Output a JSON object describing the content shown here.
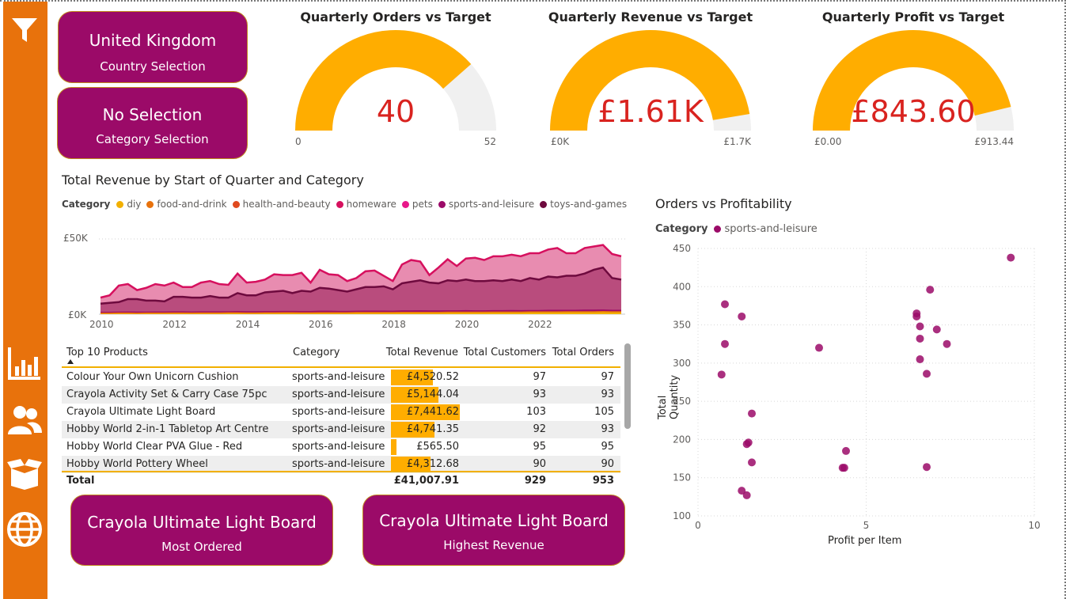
{
  "sidebar": {
    "icons": [
      "filter-icon",
      "bar-chart-icon",
      "users-icon",
      "box-icon",
      "globe-icon"
    ]
  },
  "selections": {
    "country": {
      "value": "United Kingdom",
      "label": "Country Selection"
    },
    "category": {
      "value": "No Selection",
      "label": "Category Selection"
    }
  },
  "gauges": [
    {
      "title": "Quarterly Orders vs Target",
      "value": "40",
      "min": "0",
      "max": "52",
      "fraction": 0.77
    },
    {
      "title": "Quarterly Revenue vs Target",
      "value": "£1.61K",
      "min": "£0K",
      "max": "£1.7K",
      "fraction": 0.947
    },
    {
      "title": "Quarterly Profit vs Target",
      "value": "£843.60",
      "min": "£0.00",
      "max": "£913.44",
      "fraction": 0.924
    }
  ],
  "colors": {
    "accent": "#e8720c",
    "card": "#9b0a68",
    "gauge_fill": "#ffad00",
    "gauge_track": "#f0f0f0",
    "gauge_value": "#d9231f",
    "scatter_point": "#9b0a68"
  },
  "area_chart": {
    "title": "Total Revenue by Start of Quarter and Category",
    "legend_title": "Category",
    "legend": [
      {
        "name": "diy",
        "color": "#f2b000"
      },
      {
        "name": "food-and-drink",
        "color": "#e8720c"
      },
      {
        "name": "health-and-beauty",
        "color": "#e04a1f"
      },
      {
        "name": "homeware",
        "color": "#d6105e"
      },
      {
        "name": "pets",
        "color": "#e8188a"
      },
      {
        "name": "sports-and-leisure",
        "color": "#9b0a68"
      },
      {
        "name": "toys-and-games",
        "color": "#6e0a3e"
      }
    ],
    "y_ticks": [
      "£50K",
      "£0K"
    ],
    "x_ticks": [
      "2010",
      "2012",
      "2014",
      "2016",
      "2018",
      "2020",
      "2022"
    ]
  },
  "chart_data": [
    {
      "type": "area",
      "title": "Total Revenue by Start of Quarter and Category",
      "xlabel": "",
      "ylabel": "",
      "y_unit": "£",
      "ylim": [
        0,
        50000
      ],
      "x_start": "2010-Q1",
      "x_end": "2023-Q2",
      "x_step": "quarter",
      "series": [
        {
          "name": "homeware",
          "values": [
            11000,
            12500,
            19000,
            20000,
            16000,
            17500,
            20000,
            19000,
            21000,
            18000,
            18000,
            21000,
            22000,
            20000,
            19500,
            27000,
            21000,
            21500,
            23000,
            26500,
            26000,
            26000,
            27500,
            21000,
            29500,
            26500,
            26000,
            22000,
            24000,
            28500,
            29000,
            25500,
            22000,
            33000,
            36000,
            35000,
            26000,
            31000,
            36500,
            32000,
            37000,
            37500,
            36000,
            38500,
            38500,
            39500,
            38500,
            40500,
            40500,
            43000,
            44000,
            40500,
            40500,
            44000,
            45000,
            46000,
            40000,
            38500
          ]
        },
        {
          "name": "toys-and-games",
          "values": [
            7000,
            7500,
            8000,
            10000,
            10000,
            9000,
            9000,
            8500,
            11500,
            11500,
            11000,
            11000,
            12000,
            11000,
            11000,
            14000,
            12500,
            12500,
            14500,
            15000,
            15500,
            14000,
            15500,
            15000,
            17500,
            17000,
            16000,
            15000,
            16500,
            18000,
            18000,
            18500,
            16500,
            20500,
            21500,
            22500,
            21000,
            20500,
            22500,
            22000,
            23000,
            22000,
            22000,
            22500,
            22000,
            23000,
            22000,
            24000,
            23000,
            25000,
            24500,
            25500,
            25500,
            27000,
            29500,
            31000,
            24000,
            23000
          ]
        },
        {
          "name": "sports-and-leisure",
          "values": [
            1200,
            1200,
            1300,
            1400,
            1300,
            1300,
            1400,
            1400,
            1500,
            1500,
            1400,
            1500,
            1500,
            1500,
            1600,
            1700,
            1600,
            1600,
            1700,
            1700,
            1800,
            1800,
            1700,
            1700,
            1900,
            1900,
            1800,
            1800,
            1900,
            2000,
            2000,
            2000,
            1900,
            2100,
            2100,
            2200,
            2100,
            2100,
            2200,
            2200,
            2300,
            2200,
            2200,
            2300,
            2300,
            2400,
            2300,
            2400,
            2400,
            2500,
            2500,
            2500,
            2500,
            2600,
            2600,
            2700,
            2500,
            2500
          ]
        },
        {
          "name": "diy",
          "values": [
            600,
            600,
            700,
            700,
            600,
            700,
            700,
            700,
            800,
            800,
            700,
            800,
            800,
            800,
            900,
            900,
            800,
            800,
            900,
            900,
            1000,
            1000,
            900,
            900,
            1000,
            1000,
            1000,
            1000,
            1100,
            1100,
            1100,
            1100,
            1100,
            1200,
            1200,
            1200,
            1200,
            1200,
            1300,
            1300,
            1300,
            1300,
            1300,
            1400,
            1400,
            1400,
            1400,
            1500,
            1500,
            1500,
            1500,
            1600,
            1600,
            1600,
            1600,
            1700,
            1600,
            1600
          ]
        }
      ]
    },
    {
      "type": "table",
      "title": "Top 10 Products",
      "columns": [
        "Top 10 Products",
        "Category",
        "Total Revenue",
        "Total Customers",
        "Total Orders"
      ],
      "rows": [
        {
          "product": "Colour Your Own Unicorn Cushion",
          "category": "sports-and-leisure",
          "revenue": "£4,520.52",
          "revenue_value": 4520.52,
          "customers": "97",
          "orders": "97"
        },
        {
          "product": "Crayola Activity Set & Carry Case 75pc",
          "category": "sports-and-leisure",
          "revenue": "£5,144.04",
          "revenue_value": 5144.04,
          "customers": "93",
          "orders": "93"
        },
        {
          "product": "Crayola Ultimate Light Board",
          "category": "sports-and-leisure",
          "revenue": "£7,441.62",
          "revenue_value": 7441.62,
          "customers": "103",
          "orders": "105"
        },
        {
          "product": "Hobby World 2-in-1 Tabletop Art Centre",
          "category": "sports-and-leisure",
          "revenue": "£4,741.35",
          "revenue_value": 4741.35,
          "customers": "92",
          "orders": "93"
        },
        {
          "product": "Hobby World Clear PVA Glue - Red",
          "category": "sports-and-leisure",
          "revenue": "£565.50",
          "revenue_value": 565.5,
          "customers": "95",
          "orders": "95"
        },
        {
          "product": "Hobby World Pottery Wheel",
          "category": "sports-and-leisure",
          "revenue": "£4,312.68",
          "revenue_value": 4312.68,
          "customers": "90",
          "orders": "90"
        }
      ],
      "total": {
        "label": "Total",
        "revenue": "£41,007.91",
        "customers": "929",
        "orders": "953"
      }
    },
    {
      "type": "scatter",
      "title": "Orders vs Profitability",
      "xlabel": "Profit per Item",
      "ylabel": "Total Quantity",
      "xlim": [
        0,
        10
      ],
      "ylim": [
        100,
        450
      ],
      "series": [
        {
          "name": "sports-and-leisure",
          "points": [
            [
              9.3,
              438
            ],
            [
              0.8,
              377
            ],
            [
              1.3,
              361
            ],
            [
              6.9,
              396
            ],
            [
              6.5,
              365
            ],
            [
              6.5,
              361
            ],
            [
              6.6,
              348
            ],
            [
              7.1,
              344
            ],
            [
              7.4,
              325
            ],
            [
              6.6,
              332
            ],
            [
              0.8,
              325
            ],
            [
              3.6,
              320
            ],
            [
              6.6,
              305
            ],
            [
              0.7,
              285
            ],
            [
              6.8,
              286
            ],
            [
              1.6,
              234
            ],
            [
              1.5,
              196
            ],
            [
              1.45,
              194
            ],
            [
              1.6,
              170
            ],
            [
              4.4,
              185
            ],
            [
              4.3,
              163
            ],
            [
              4.35,
              163
            ],
            [
              6.8,
              164
            ],
            [
              1.3,
              133
            ],
            [
              1.45,
              127
            ]
          ]
        }
      ]
    }
  ],
  "table": {
    "headers": {
      "product": "Top 10 Products",
      "category": "Category",
      "revenue": "Total Revenue",
      "customers": "Total Customers",
      "orders": "Total Orders"
    }
  },
  "scatter": {
    "title": "Orders vs Profitability",
    "legend_title": "Category",
    "legend_item": "sports-and-leisure",
    "xlabel": "Profit per Item",
    "ylabel": "Total Quantity",
    "x_ticks": [
      "0",
      "5",
      "10"
    ],
    "y_ticks": [
      "450",
      "400",
      "350",
      "300",
      "250",
      "200",
      "150",
      "100"
    ]
  },
  "cards": {
    "most_ordered": {
      "value": "Crayola Ultimate Light Board",
      "label": "Most Ordered"
    },
    "highest_revenue": {
      "value": "Crayola Ultimate Light Board",
      "label": "Highest Revenue"
    }
  }
}
